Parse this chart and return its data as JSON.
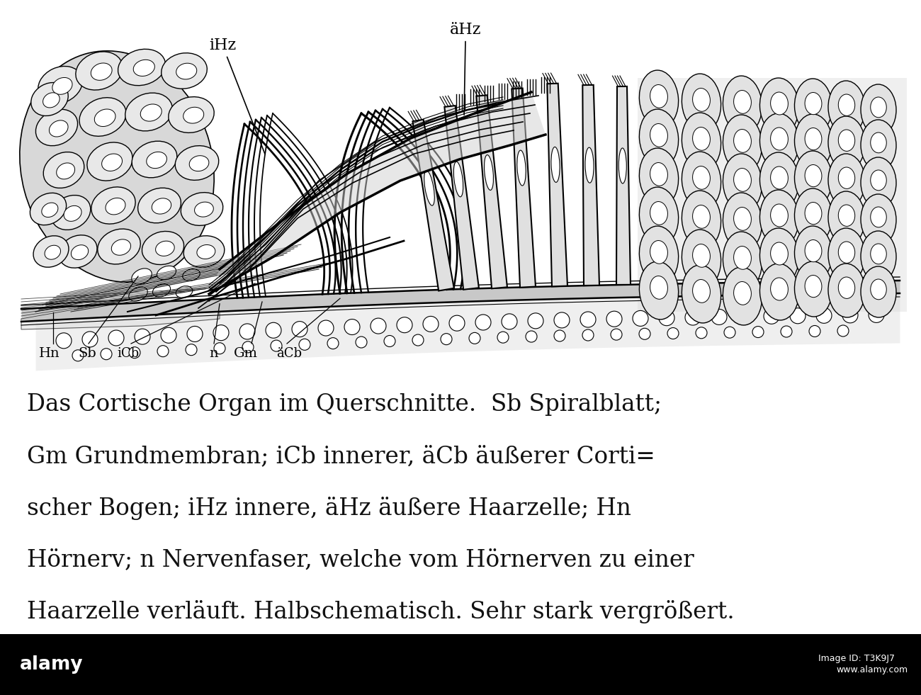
{
  "background_color": "#ffffff",
  "figure_width": 13.0,
  "figure_height": 9.81,
  "dpi": 100,
  "text_color": "#111111",
  "diagram_line_color": "#000000",
  "label_iHz": "iHz",
  "label_aHz": "äHz",
  "label_Hn": "Hn",
  "label_Sb": "Sb",
  "label_iCb": "iCb",
  "label_n": "n",
  "label_Gm": "Gm",
  "label_aCb": "äCb",
  "alamy_bar_color": "#000000",
  "caption_line1": "Das Cortische Organ im Querschnitte.  Sb Spiralblatt;",
  "caption_line2": "Gm Grundmembran; iCb innerer, äCb äußerer Corti=",
  "caption_line3": "scher Bogen; iHz innere, äHz äußere Haarzelle; Hn",
  "caption_line4": "Hörnerv; n Nervenfaser, welche vom Hörnerven zu einer",
  "caption_line5": "Haarzelle verläuft. Halbschematisch. Sehr stark vergrößert."
}
